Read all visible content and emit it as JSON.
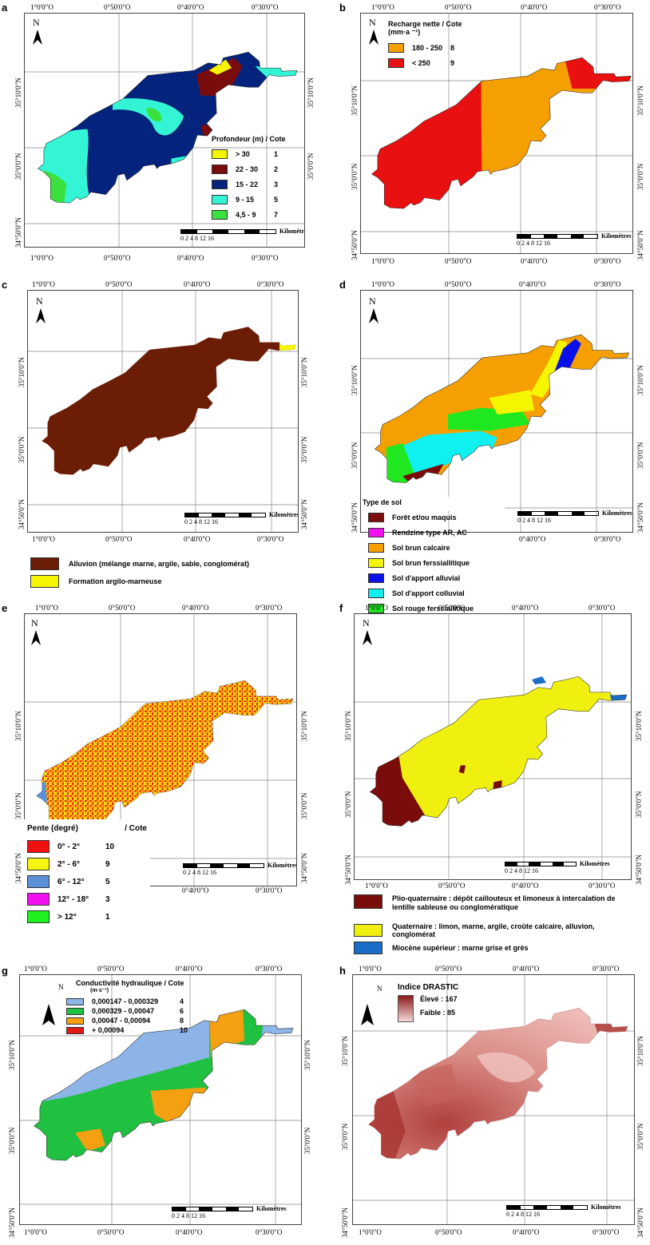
{
  "coords": {
    "lon": [
      "1°0'0\"O",
      "0°50'0\"O",
      "0°40'0\"O",
      "0°30'0\"O"
    ],
    "lat": [
      "35°10'0\"N",
      "35°0'0\"N",
      "34°50'0\"N"
    ],
    "north": "N"
  },
  "scale": {
    "ticks": "0  2  4      8      12      16",
    "unit": "Kilomètres"
  },
  "panels": {
    "a": {
      "letter": "a",
      "legend_title": "Profondeur (m) / Cote",
      "classes": [
        {
          "range": "> 30",
          "cote": "1",
          "color": "#f5f500"
        },
        {
          "range": "22 - 30",
          "cote": "2",
          "color": "#7a0c0c"
        },
        {
          "range": "15 - 22",
          "cote": "3",
          "color": "#03237d"
        },
        {
          "range": "9 - 15",
          "cote": "5",
          "color": "#33f5d6"
        },
        {
          "range": "4,5 - 9",
          "cote": "7",
          "color": "#3ce03c"
        }
      ]
    },
    "b": {
      "letter": "b",
      "legend_title": "Recharge nette  / Cote",
      "legend_unit": "(mm·a  ⁻¹)",
      "classes": [
        {
          "range": "180 - 250",
          "cote": "8",
          "color": "#f5a000"
        },
        {
          "range": "< 250",
          "cote": "9",
          "color": "#e81010"
        }
      ]
    },
    "c": {
      "letter": "c",
      "classes": [
        {
          "label": "Alluvion (mélange marne, argile, sable, conglomérat)",
          "color": "#6b1e05"
        },
        {
          "label": "Formation argilo-marneuse",
          "color": "#f5f500"
        }
      ]
    },
    "d": {
      "letter": "d",
      "legend_title": "Type de sol",
      "classes": [
        {
          "label": "Forêt et/ou maquis",
          "color": "#7a0c0c"
        },
        {
          "label": "Rendzine type AR, AC",
          "color": "#f010f0"
        },
        {
          "label": "Sol brun calcaire",
          "color": "#f5a000"
        },
        {
          "label": "Sol brun ferssiallitique",
          "color": "#f5f500"
        },
        {
          "label": "Sol d'apport alluvial",
          "color": "#0a10e8"
        },
        {
          "label": "Sol d'apport colluvial",
          "color": "#10f0f0"
        },
        {
          "label": "Sol rouge ferssiallitique",
          "color": "#20e820"
        }
      ]
    },
    "e": {
      "letter": "e",
      "legend_title": "Pente (degré)",
      "legend_cote": "/ Cote",
      "classes": [
        {
          "range": "0° - 2°",
          "cote": "10",
          "color": "#f01010"
        },
        {
          "range": "2° - 6°",
          "cote": "9",
          "color": "#f5f510"
        },
        {
          "range": "6° - 12°",
          "cote": "5",
          "color": "#5b8fd6"
        },
        {
          "range": "12° - 18°",
          "cote": "3",
          "color": "#f010f0"
        },
        {
          "range": "> 12°",
          "cote": "1",
          "color": "#20f020"
        }
      ]
    },
    "f": {
      "letter": "f",
      "classes": [
        {
          "label": "Plio-quaternaire : dépôt caillouteux et limoneux à intercalation de lentille sableuse ou conglomératique",
          "color": "#7a0c0c"
        },
        {
          "label": "Quaternaire : limon, marne, argile, croûte calcaire, alluvion, conglomérat",
          "color": "#f0f010"
        },
        {
          "label": "Miocène supérieur : marne grise et grès",
          "color": "#1a6ec8"
        }
      ]
    },
    "g": {
      "letter": "g",
      "legend_title": "Conductivité hydraulique  / Cote",
      "legend_unit": "(m·s⁻¹)",
      "classes": [
        {
          "range": "0,000147 - 0,000329",
          "cote": "4",
          "color": "#8cb4e6"
        },
        {
          "range": "0,000329 - 0,00047",
          "cote": "6",
          "color": "#20c040"
        },
        {
          "range": "0,00047 - 0,00094",
          "cote": "8",
          "color": "#f5a010"
        },
        {
          "range": "+ 0,00094",
          "cote": "10",
          "color": "#e01818"
        }
      ]
    },
    "h": {
      "letter": "h",
      "legend_title": "Indice DRASTIC",
      "high_label": "Élevé : 167",
      "low_label": "Faible : 85",
      "high_color": "#8b1a1a",
      "low_color": "#f7d8d8"
    }
  }
}
